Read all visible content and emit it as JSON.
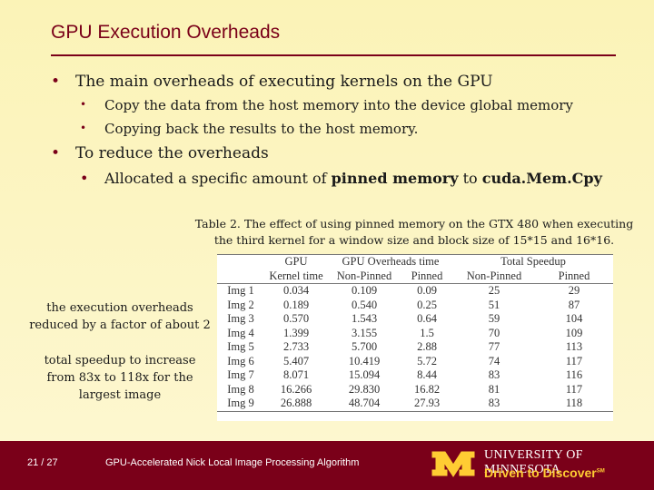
{
  "title": "GPU Execution Overheads",
  "bullets": [
    {
      "text": "The main overheads of executing kernels on the GPU",
      "sub": [
        "Copy the data from the host memory into the device global memory",
        "Copying back the results to the host memory."
      ]
    },
    {
      "text": "To reduce the overheads",
      "sub_prefix": "Allocated a specific amount of ",
      "sub_bold1": "pinned memory",
      "sub_mid": " to ",
      "sub_bold2": "cuda.Mem.Cpy"
    }
  ],
  "caption": {
    "line1": "Table 2. The effect of using pinned memory on the GTX 480 when executing",
    "line2": "the third kernel for a window size and block size of 15*15 and 16*16."
  },
  "table": {
    "header1": [
      "",
      "GPU",
      "GPU Overheads time",
      "Total Speedup"
    ],
    "header2": [
      "",
      "Kernel time",
      "Non-Pinned",
      "Pinned",
      "Non-Pinned",
      "Pinned"
    ],
    "rows": [
      [
        "Img 1",
        "0.034",
        "0.109",
        "0.09",
        "25",
        "29"
      ],
      [
        "Img 2",
        "0.189",
        "0.540",
        "0.25",
        "51",
        "87"
      ],
      [
        "Img 3",
        "0.570",
        "1.543",
        "0.64",
        "59",
        "104"
      ],
      [
        "Img 4",
        "1.399",
        "3.155",
        "1.5",
        "70",
        "109"
      ],
      [
        "Img 5",
        "2.733",
        "5.700",
        "2.88",
        "77",
        "113"
      ],
      [
        "Img 6",
        "5.407",
        "10.419",
        "5.72",
        "74",
        "117"
      ],
      [
        "Img 7",
        "8.071",
        "15.094",
        "8.44",
        "83",
        "116"
      ],
      [
        "Img 8",
        "16.266",
        "29.830",
        "16.82",
        "81",
        "117"
      ],
      [
        "Img 9",
        "26.888",
        "48.704",
        "27.93",
        "83",
        "118"
      ]
    ]
  },
  "notes": {
    "overhead": [
      "the execution overheads",
      "reduced by a factor of about 2"
    ],
    "speedup": [
      "total speedup to increase",
      "from 83x to 118x for the",
      "largest image"
    ]
  },
  "footer": {
    "page": "21 / 27",
    "title": "GPU-Accelerated Nick Local Image Processing Algorithm",
    "university": "UNIVERSITY OF MINNESOTA",
    "tagline": "Driven to Discover",
    "tagline_mark": "SM",
    "logo": "M-logo"
  },
  "colors": {
    "maroon": "#7a0019",
    "gold": "#ffcc33",
    "background": "#fcf5bf"
  }
}
